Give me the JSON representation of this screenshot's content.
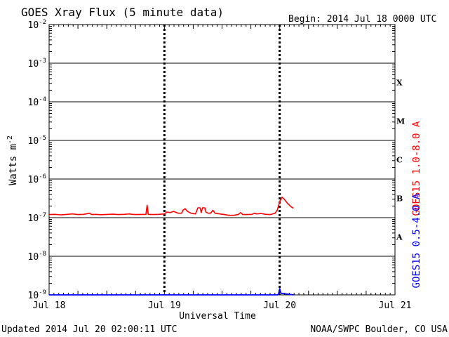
{
  "chart_data": {
    "type": "line",
    "title": "GOES Xray Flux (5 minute data)",
    "begin": "Begin:  2014 Jul 18 0000 UTC",
    "ylabel": "Watts m",
    "ylabel_sup": "-2",
    "xlabel": "Universal Time",
    "y_scale": "log",
    "ylim": [
      1e-09,
      0.01
    ],
    "y_ticks": [
      {
        "value": 1e-09,
        "exp": "-9"
      },
      {
        "value": 1e-08,
        "exp": "-8"
      },
      {
        "value": 1e-07,
        "exp": "-7"
      },
      {
        "value": 1e-06,
        "exp": "-6"
      },
      {
        "value": 1e-05,
        "exp": "-5"
      },
      {
        "value": 0.0001,
        "exp": "-4"
      },
      {
        "value": 0.001,
        "exp": "-3"
      },
      {
        "value": 0.01,
        "exp": "-2"
      }
    ],
    "x_domain_days": [
      0,
      3
    ],
    "x_ticks": [
      {
        "label": "Jul 18",
        "day": 0
      },
      {
        "label": "Jul 19",
        "day": 1
      },
      {
        "label": "Jul 20",
        "day": 2
      },
      {
        "label": "Jul 21",
        "day": 3
      }
    ],
    "flare_classes": [
      {
        "label": "A",
        "band_low": 1e-08,
        "band_high": 1e-07
      },
      {
        "label": "B",
        "band_low": 1e-07,
        "band_high": 1e-06
      },
      {
        "label": "C",
        "band_low": 1e-06,
        "band_high": 1e-05
      },
      {
        "label": "M",
        "band_low": 1e-05,
        "band_high": 0.0001
      },
      {
        "label": "X",
        "band_low": 0.0001,
        "band_high": 0.001
      }
    ],
    "series": [
      {
        "name": "GOES15 1.0-8.0 A",
        "color": "#ff0000",
        "points": [
          [
            0.0,
            1.2e-07
          ],
          [
            0.05,
            1.22e-07
          ],
          [
            0.1,
            1.18e-07
          ],
          [
            0.15,
            1.21e-07
          ],
          [
            0.2,
            1.25e-07
          ],
          [
            0.25,
            1.2e-07
          ],
          [
            0.3,
            1.22e-07
          ],
          [
            0.35,
            1.3e-07
          ],
          [
            0.37,
            1.2e-07
          ],
          [
            0.4,
            1.22e-07
          ],
          [
            0.45,
            1.19e-07
          ],
          [
            0.5,
            1.21e-07
          ],
          [
            0.55,
            1.23e-07
          ],
          [
            0.6,
            1.2e-07
          ],
          [
            0.65,
            1.22e-07
          ],
          [
            0.7,
            1.25e-07
          ],
          [
            0.72,
            1.22e-07
          ],
          [
            0.75,
            1.2e-07
          ],
          [
            0.84,
            1.22e-07
          ],
          [
            0.85,
            2.1e-07
          ],
          [
            0.86,
            1.22e-07
          ],
          [
            0.9,
            1.2e-07
          ],
          [
            0.95,
            1.22e-07
          ],
          [
            1.0,
            1.25e-07
          ],
          [
            1.02,
            1.4e-07
          ],
          [
            1.05,
            1.35e-07
          ],
          [
            1.08,
            1.45e-07
          ],
          [
            1.12,
            1.3e-07
          ],
          [
            1.15,
            1.3e-07
          ],
          [
            1.16,
            1.55e-07
          ],
          [
            1.18,
            1.7e-07
          ],
          [
            1.2,
            1.45e-07
          ],
          [
            1.23,
            1.3e-07
          ],
          [
            1.27,
            1.25e-07
          ],
          [
            1.29,
            1.8e-07
          ],
          [
            1.31,
            1.8e-07
          ],
          [
            1.32,
            1.35e-07
          ],
          [
            1.33,
            1.8e-07
          ],
          [
            1.35,
            1.8e-07
          ],
          [
            1.36,
            1.4e-07
          ],
          [
            1.38,
            1.3e-07
          ],
          [
            1.4,
            1.3e-07
          ],
          [
            1.42,
            1.55e-07
          ],
          [
            1.44,
            1.3e-07
          ],
          [
            1.48,
            1.25e-07
          ],
          [
            1.52,
            1.2e-07
          ],
          [
            1.56,
            1.15e-07
          ],
          [
            1.6,
            1.15e-07
          ],
          [
            1.64,
            1.2e-07
          ],
          [
            1.66,
            1.35e-07
          ],
          [
            1.68,
            1.2e-07
          ],
          [
            1.72,
            1.2e-07
          ],
          [
            1.76,
            1.22e-07
          ],
          [
            1.78,
            1.3e-07
          ],
          [
            1.8,
            1.25e-07
          ],
          [
            1.84,
            1.28e-07
          ],
          [
            1.88,
            1.22e-07
          ],
          [
            1.92,
            1.2e-07
          ],
          [
            1.96,
            1.3e-07
          ],
          [
            1.98,
            1.6e-07
          ],
          [
            2.0,
            2.6e-07
          ],
          [
            2.02,
            3.4e-07
          ],
          [
            2.04,
            3e-07
          ],
          [
            2.07,
            2.3e-07
          ],
          [
            2.1,
            1.9e-07
          ],
          [
            2.12,
            1.75e-07
          ]
        ]
      },
      {
        "name": "GOES15 0.5-4.0 A",
        "color": "#0000ff",
        "points": [
          [
            0.0,
            1e-09
          ],
          [
            1.98,
            1e-09
          ],
          [
            1.99,
            1.05e-09
          ],
          [
            2.0,
            1.45e-09
          ],
          [
            2.01,
            1.1e-09
          ],
          [
            2.12,
            1e-09
          ]
        ]
      }
    ]
  },
  "footer": {
    "updated": "Updated 2014 Jul 20 02:00:11 UTC",
    "credit": "NOAA/SWPC Boulder, CO USA"
  }
}
